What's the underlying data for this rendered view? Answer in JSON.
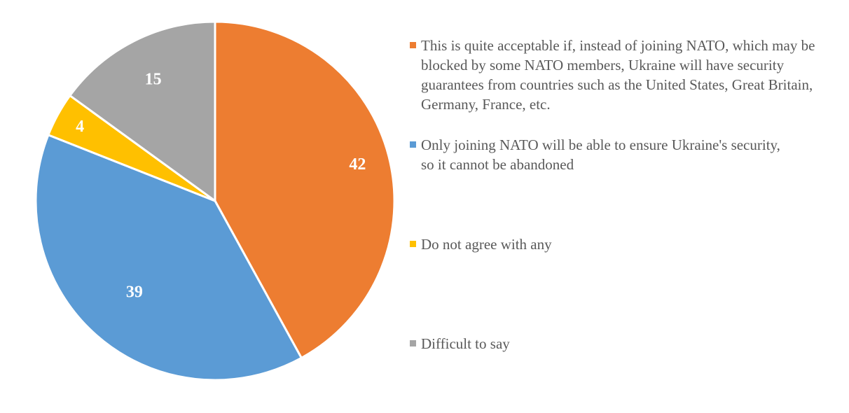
{
  "chart_data": {
    "type": "pie",
    "title": "",
    "categories": [
      "This is quite acceptable if, instead of joining NATO, which may be blocked by some NATO members, Ukraine will have security guarantees from countries such as the United States, Great Britain, Germany, France, etc.",
      "Only joining NATO will be able to ensure Ukraine's security, so it cannot be abandoned",
      "Do not agree with any",
      "Difficult to say"
    ],
    "values": [
      42,
      39,
      4,
      15
    ],
    "data_labels": [
      "42",
      "39",
      "4",
      "15"
    ],
    "colors": [
      "#ED7D31",
      "#5B9BD5",
      "#FFC000",
      "#A5A5A5"
    ],
    "legend_position": "right",
    "start_angle_deg": 0,
    "direction": "clockwise"
  }
}
